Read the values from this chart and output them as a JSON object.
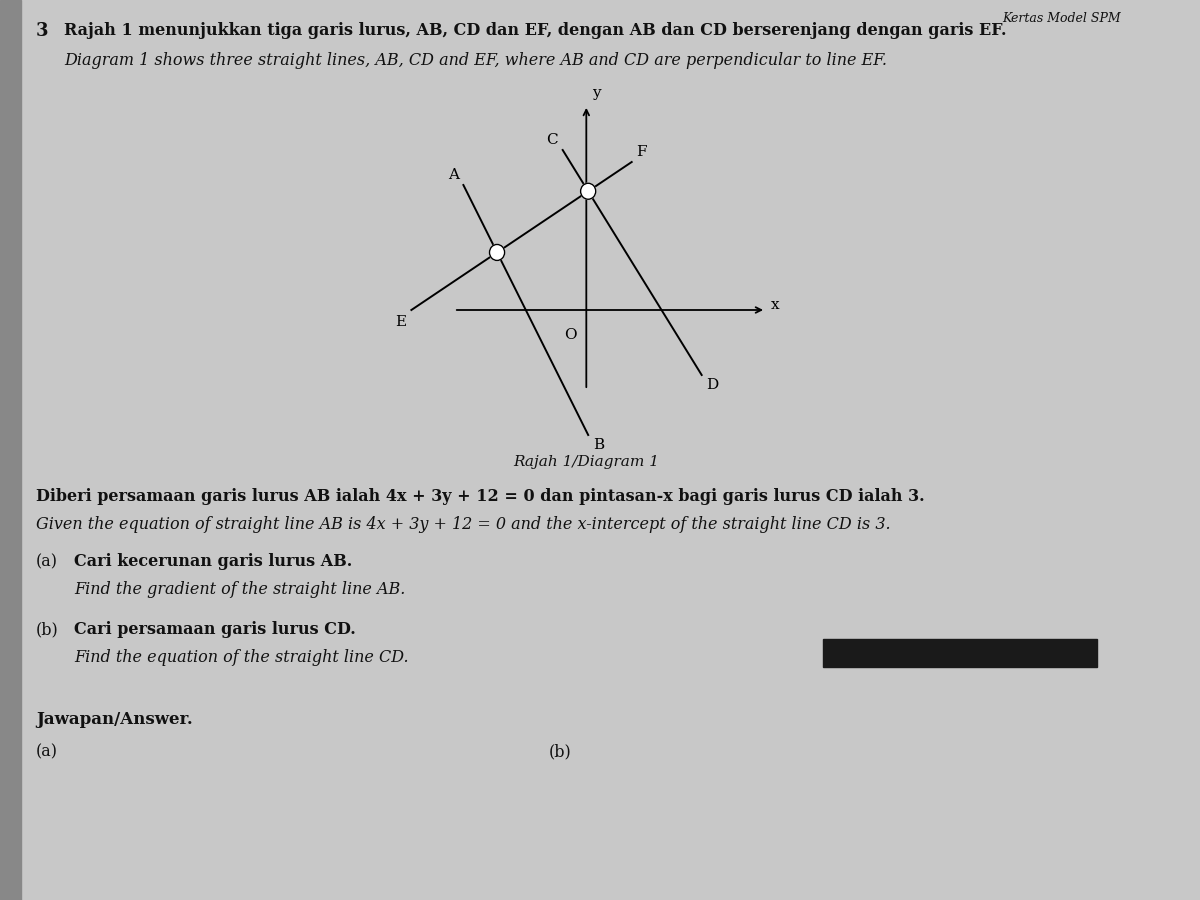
{
  "bg_color": "#c8c8c8",
  "text_color": "#111111",
  "question_number": "3",
  "title_malay": "Rajah 1 menunjukkan tiga garis lurus, AB, CD dan EF, dengan AB dan CD berserenjang dengan garis EF.",
  "title_english": "Diagram 1 shows three straight lines, AB, CD and EF, where AB and CD are perpendicular to line EF.",
  "header_right": "Kertas Model SPM",
  "diagram_label": "Rajah 1/Diagram 1",
  "given_malay": "Diberi persamaan garis lurus AB ialah 4x + 3y + 12 = 0 dan pintasan-x bagi garis lurus CD ialah 3.",
  "given_english": "Given the equation of straight line AB is 4x + 3y + 12 = 0 and the x-intercept of the straight line CD is 3.",
  "qa_label": "(a)",
  "qa_malay": "Cari kecerunan garis lurus AB.",
  "qa_english": "Find the gradient of the straight line AB.",
  "qb_label": "(b)",
  "qb_malay": "Cari persamaan garis lurus CD.",
  "qb_english": "Find the equation of the straight line CD.",
  "answer_label": "Jawapan/Answer.",
  "ans_a": "(a)",
  "ans_b": "(b)"
}
